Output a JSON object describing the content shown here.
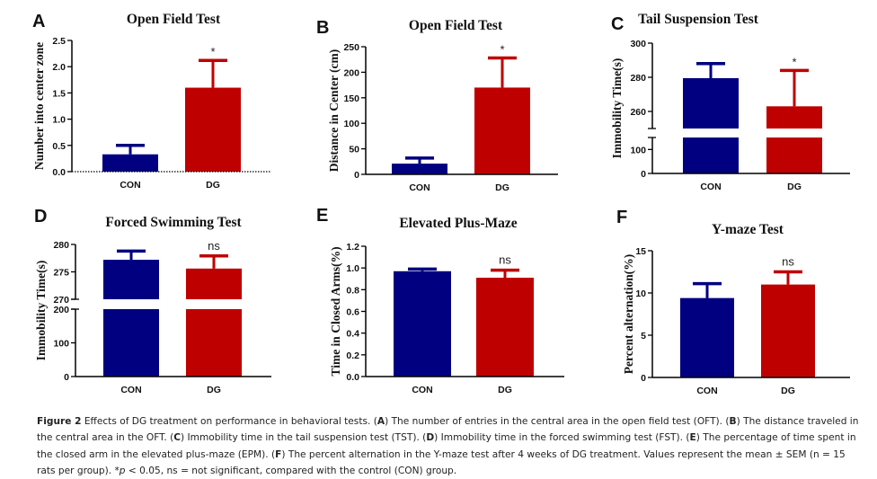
{
  "figure": {
    "colors": {
      "con": "#000080",
      "dg": "#bf0000",
      "axis": "#000000",
      "text": "#1a1a1a"
    },
    "caption": {
      "figure_label": "Figure 2",
      "segments": [
        {
          "t": " Effects of DG treatment on performance in behavioral tests. ("
        },
        {
          "t": "A",
          "b": true
        },
        {
          "t": ") The number of entries in the central area in the open field test (OFT). ("
        },
        {
          "t": "B",
          "b": true
        },
        {
          "t": ") The distance traveled in the central area in the OFT. ("
        },
        {
          "t": "C",
          "b": true
        },
        {
          "t": ") Immobility time in the tail suspension test (TST). ("
        },
        {
          "t": "D",
          "b": true
        },
        {
          "t": ") Immobility time in the forced swimming test (FST). ("
        },
        {
          "t": "E",
          "b": true
        },
        {
          "t": ") The percentage of time spent in the closed arm in the elevated plus-maze (EPM). ("
        },
        {
          "t": "F",
          "b": true
        },
        {
          "t": ") The percent alternation in the Y-maze test after 4 weeks of DG treatment. Values represent the mean ± SEM (n = 15 rats per group). *"
        },
        {
          "t": "p",
          "i": true
        },
        {
          "t": " < 0.05, ns = not significant, compared with the control (CON) group."
        }
      ]
    }
  },
  "chart_data": [
    {
      "panel": "A",
      "type": "bar",
      "title": "Open Field Test",
      "xlabel": "",
      "ylabel": "Number into center zone",
      "categories": [
        "CON",
        "DG"
      ],
      "values": [
        0.33,
        1.6
      ],
      "errors": [
        0.17,
        0.52
      ],
      "significance": [
        "",
        "*"
      ],
      "ylim": [
        0,
        2.5
      ],
      "yticks": [
        "0.0",
        "0.5",
        "1.0",
        "1.5",
        "2.0",
        "2.5"
      ],
      "dotted_baseline": true,
      "grid": false,
      "legend": "none"
    },
    {
      "panel": "B",
      "type": "bar",
      "title": "Open Field Test",
      "xlabel": "",
      "ylabel": "Distance in Center (cm)",
      "categories": [
        "CON",
        "DG"
      ],
      "values": [
        21,
        170
      ],
      "errors": [
        11,
        58
      ],
      "significance": [
        "",
        "*"
      ],
      "ylim": [
        0,
        250
      ],
      "yticks": [
        "0",
        "50",
        "100",
        "150",
        "200",
        "250"
      ],
      "grid": false,
      "legend": "none"
    },
    {
      "panel": "C",
      "type": "bar",
      "title": "Tail Suspension Test",
      "xlabel": "",
      "ylabel": "Immobility Time(s)",
      "categories": [
        "CON",
        "DG"
      ],
      "values": [
        279.5,
        263
      ],
      "errors": [
        8.5,
        21
      ],
      "significance": [
        "",
        "*"
      ],
      "ylim": [
        0,
        300
      ],
      "axis_break": {
        "lower": [
          0,
          150
        ],
        "upper": [
          250,
          300
        ]
      },
      "yticks": [
        "0",
        "100",
        "260",
        "280",
        "300"
      ],
      "grid": false,
      "legend": "none"
    },
    {
      "panel": "D",
      "type": "bar",
      "title": "Forced Swimming Test",
      "xlabel": "",
      "ylabel": "Immobility Time(s)",
      "categories": [
        "CON",
        "DG"
      ],
      "values": [
        277.2,
        275.6
      ],
      "errors": [
        1.6,
        2.3
      ],
      "significance": [
        "",
        "ns"
      ],
      "ylim": [
        0,
        280
      ],
      "axis_break": {
        "lower": [
          0,
          200
        ],
        "upper": [
          270,
          280
        ]
      },
      "yticks": [
        "0",
        "100",
        "200",
        "270",
        "275",
        "280"
      ],
      "grid": false,
      "legend": "none"
    },
    {
      "panel": "E",
      "type": "bar",
      "title": "Elevated Plus-Maze",
      "xlabel": "",
      "ylabel": "Time in Closed Arms(%)",
      "categories": [
        "CON",
        "DG"
      ],
      "values": [
        0.97,
        0.91
      ],
      "errors": [
        0.02,
        0.07
      ],
      "significance": [
        "",
        "ns"
      ],
      "ylim": [
        0,
        1.2
      ],
      "yticks": [
        "0.0",
        "0.2",
        "0.4",
        "0.6",
        "0.8",
        "1.0",
        "1.2"
      ],
      "grid": false,
      "legend": "none"
    },
    {
      "panel": "F",
      "type": "bar",
      "title": "Y-maze Test",
      "xlabel": "",
      "ylabel": "Percent alternation(%)",
      "categories": [
        "CON",
        "DG"
      ],
      "values": [
        9.4,
        11.0
      ],
      "errors": [
        1.7,
        1.5
      ],
      "significance": [
        "",
        "ns"
      ],
      "ylim": [
        0,
        15
      ],
      "yticks": [
        "0",
        "5",
        "10",
        "15"
      ],
      "grid": false,
      "legend": "none"
    }
  ]
}
